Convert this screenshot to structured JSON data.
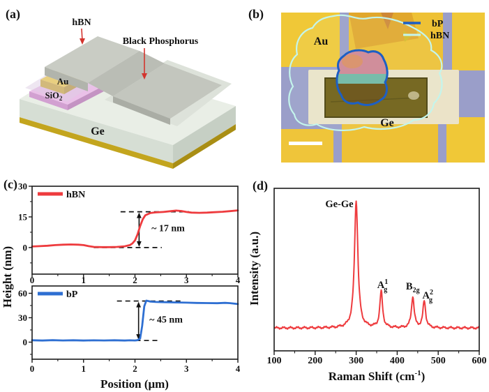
{
  "panel_a": {
    "label": "(a)",
    "hbn_label": "hBN",
    "bp_label": "Black Phosphorus",
    "au_label": "Au",
    "sio2_base": "SiO",
    "sio2_sub": "2",
    "ge_label": "Ge",
    "arrow_color": "#d3342e"
  },
  "panel_b": {
    "label": "(b)",
    "au_label": "Au",
    "ge_label": "Ge",
    "legend": {
      "bp": "bP",
      "hbn": "hBN"
    },
    "bp_outline_color": "#1d5fc4",
    "hbn_outline_color": "#c4f5ec"
  },
  "panel_c": {
    "label": "(c)"
  },
  "panel_d": {
    "label": "(d)"
  },
  "chart_data": [
    {
      "id": "hbn-profile",
      "type": "line",
      "series": "hBN",
      "color": "#ee3b3e",
      "ylabel": "Height (nm)",
      "xlabel": "Position (μm)",
      "xlim": [
        0,
        4
      ],
      "ylim": [
        -13,
        30
      ],
      "xticks": [
        0,
        1,
        2,
        3,
        4
      ],
      "yticks": [
        0,
        15,
        30
      ],
      "x_minor_step": 0.5,
      "y_minor_step": 7.5,
      "x": [
        0,
        0.15,
        0.3,
        0.45,
        0.6,
        0.75,
        0.9,
        1.0,
        1.1,
        1.2,
        1.35,
        1.5,
        1.65,
        1.8,
        1.9,
        1.95,
        2.0,
        2.05,
        2.1,
        2.15,
        2.2,
        2.3,
        2.4,
        2.55,
        2.7,
        2.8,
        2.9,
        3.0,
        3.1,
        3.25,
        3.4,
        3.55,
        3.7,
        3.85,
        4.0
      ],
      "y": [
        0.5,
        0.7,
        0.9,
        1.2,
        1.4,
        1.5,
        1.4,
        1.2,
        0.7,
        0.3,
        0.2,
        0.2,
        0.3,
        0.6,
        1.2,
        2.0,
        3.5,
        6.5,
        10.5,
        13.8,
        15.8,
        16.9,
        17.2,
        17.4,
        17.8,
        18.1,
        17.9,
        17.4,
        17.1,
        17.0,
        17.1,
        17.3,
        17.5,
        17.8,
        18.2
      ],
      "dashed": [
        {
          "y": 0,
          "x1": 1.2,
          "x2": 2.52
        },
        {
          "y": 17.5,
          "x1": 1.72,
          "x2": 3.05
        }
      ],
      "arrow": {
        "x": 2.08,
        "y1": 0,
        "y2": 17.5
      },
      "annotation": {
        "text": "~ 17 nm",
        "x": 2.32,
        "y": 8.0
      },
      "step_height_nm": 17
    },
    {
      "id": "bp-profile",
      "type": "line",
      "series": "bP",
      "color": "#2e6fd2",
      "ylabel": "Height (nm)",
      "xlabel": "Position (μm)",
      "xlim": [
        0,
        4
      ],
      "ylim": [
        -21,
        69
      ],
      "xticks": [
        0,
        1,
        2,
        3,
        4
      ],
      "yticks": [
        0,
        30,
        60
      ],
      "x_minor_step": 0.5,
      "y_minor_step": 15,
      "x": [
        0,
        0.2,
        0.4,
        0.6,
        0.8,
        1.0,
        1.2,
        1.4,
        1.6,
        1.8,
        1.9,
        2.0,
        2.05,
        2.1,
        2.14,
        2.18,
        2.22,
        2.26,
        2.3,
        2.4,
        2.5,
        2.65,
        2.8,
        3.0,
        3.2,
        3.4,
        3.6,
        3.75,
        3.85,
        4.0
      ],
      "y": [
        2.3,
        2.0,
        2.4,
        2.1,
        2.3,
        2.0,
        2.2,
        2.1,
        2.3,
        2.0,
        2.2,
        2.1,
        2.4,
        4.5,
        20,
        44,
        51,
        50.5,
        49.8,
        49.4,
        49.2,
        49.0,
        48.8,
        48.5,
        48.2,
        48.0,
        47.8,
        48.3,
        47.9,
        46.8
      ],
      "dashed": [
        {
          "y": 2,
          "x1": 1.2,
          "x2": 2.45
        },
        {
          "y": 50.5,
          "x1": 1.65,
          "x2": 2.95
        }
      ],
      "arrow": {
        "x": 2.07,
        "y1": 2,
        "y2": 50.5
      },
      "annotation": {
        "text": "~ 45 nm",
        "x": 2.28,
        "y": 24
      },
      "step_height_nm": 45
    },
    {
      "id": "raman-spectrum",
      "type": "line",
      "color": "#ee3b3e",
      "ylabel": "Intensity (a.u.)",
      "xlabel_parts": {
        "pre": "Raman Shift (cm",
        "sup": "-1",
        "post": ")"
      },
      "xlim": [
        100,
        600
      ],
      "xticks": [
        100,
        200,
        300,
        400,
        500,
        600
      ],
      "x_minor_step": 50,
      "ylim": [
        -0.18,
        1.1
      ],
      "baseline": 0,
      "peaks": [
        {
          "center": 300,
          "height": 1.0,
          "hwhm": 5,
          "label": {
            "main": "Ge-Ge"
          }
        },
        {
          "center": 361,
          "height": 0.285,
          "hwhm": 4,
          "label": {
            "main": "A",
            "sup": "1",
            "sub": "g"
          }
        },
        {
          "center": 438,
          "height": 0.245,
          "hwhm": 4,
          "label": {
            "main": "B",
            "sub": "2g"
          }
        },
        {
          "center": 466,
          "height": 0.21,
          "hwhm": 4,
          "label": {
            "main": "A",
            "sup": "2",
            "sub": "g"
          }
        }
      ]
    }
  ]
}
